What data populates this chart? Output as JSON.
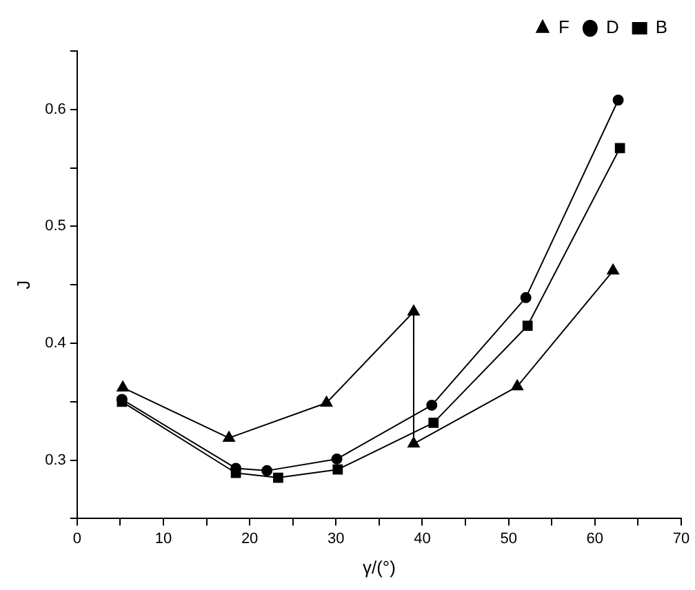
{
  "chart_data": {
    "type": "line",
    "xlabel": "γ/(°)",
    "ylabel": "J",
    "xlim": [
      0,
      70
    ],
    "xticks": [
      0,
      {
        "value": 5,
        "label": null
      },
      10,
      {
        "value": 15,
        "label": null
      },
      20,
      {
        "value": 25,
        "label": null
      },
      30,
      {
        "value": 35,
        "label": null
      },
      40,
      {
        "value": 45,
        "label": null
      },
      50,
      {
        "value": 55,
        "label": null
      },
      60,
      {
        "value": 65,
        "label": null
      },
      70
    ],
    "ylim": [
      0.25,
      0.65
    ],
    "yticks": [
      {
        "value": 0.25,
        "label": null
      },
      0.3,
      {
        "value": 0.35,
        "label": null
      },
      0.4,
      {
        "value": 0.45,
        "label": null
      },
      0.5,
      {
        "value": 0.55,
        "label": null
      },
      0.6,
      {
        "value": 0.65,
        "label": null
      }
    ],
    "grid": false,
    "legend": "top right",
    "line_style": "solid",
    "series": [
      {
        "name": "B",
        "color": "#000000",
        "marker": "square",
        "x": [
          5.2,
          18.4,
          23.3,
          30.2,
          41.3,
          52.2,
          62.9
        ],
        "values": [
          0.35,
          0.289,
          0.285,
          0.292,
          0.332,
          0.415,
          0.567
        ]
      },
      {
        "name": "D",
        "color": "#000000",
        "marker": "circle",
        "x": [
          5.2,
          18.4,
          22,
          30.1,
          41.1,
          52,
          62.7
        ],
        "values": [
          0.352,
          0.293,
          0.291,
          0.301,
          0.347,
          0.439,
          0.608
        ]
      },
      {
        "name": "F",
        "color": "#000000",
        "marker": "triangle",
        "x": [
          5.3,
          17.6,
          28.9,
          39,
          39,
          51,
          62.1
        ],
        "values": [
          0.362,
          0.319,
          0.349,
          0.427,
          0.314,
          0.363,
          0.462
        ]
      }
    ]
  }
}
